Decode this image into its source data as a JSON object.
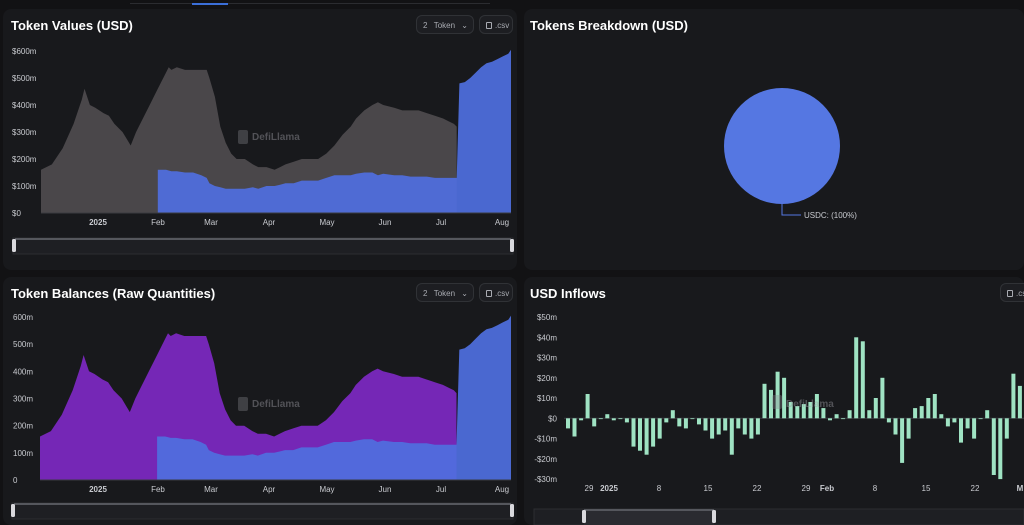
{
  "panels": {
    "token_values": {
      "title": "Token Values (USD)",
      "token_count": "2",
      "token_label": "Token",
      "csv_label": ".csv"
    },
    "tokens_breakdown": {
      "title": "Tokens Breakdown (USD)"
    },
    "token_balances": {
      "title": "Token Balances (Raw Quantities)",
      "token_count": "2",
      "token_label": "Token",
      "csv_label": ".csv"
    },
    "usd_inflows": {
      "title": "USD Inflows",
      "csv_label": ".csv"
    }
  },
  "watermark": "DefiLlama",
  "colors": {
    "gray_area": "#4d4a4d",
    "blue_area": "#4f6fe0",
    "purple_area": "#7a28bf",
    "inflow_bar": "#9fe3c3",
    "pie": "#5577e2"
  },
  "chart_data": [
    {
      "type": "area",
      "title": "Token Values (USD)",
      "x_labels": [
        "2025",
        "Feb",
        "Mar",
        "Apr",
        "May",
        "Jun",
        "Jul",
        "Aug"
      ],
      "y_labels": [
        "$0",
        "$100m",
        "$200m",
        "$300m",
        "$400m",
        "$500m",
        "$600m"
      ],
      "ylim": [
        0,
        600
      ],
      "series": [
        {
          "color": "#4d4a4d",
          "points": [
            [
              0,
              160
            ],
            [
              4,
              180
            ],
            [
              8,
              240
            ],
            [
              12,
              330
            ],
            [
              15,
              420
            ],
            [
              16,
              460
            ],
            [
              18,
              400
            ],
            [
              20,
              390
            ],
            [
              23,
              370
            ],
            [
              25,
              360
            ],
            [
              27,
              330
            ],
            [
              30,
              300
            ],
            [
              33,
              250
            ],
            [
              35,
              300
            ],
            [
              37,
              340
            ],
            [
              40,
              400
            ],
            [
              43,
              460
            ],
            [
              46,
              520
            ],
            [
              47,
              540
            ],
            [
              48,
              530
            ],
            [
              50,
              540
            ],
            [
              53,
              530
            ],
            [
              56,
              530
            ],
            [
              59,
              530
            ],
            [
              61,
              530
            ],
            [
              62,
              500
            ],
            [
              64,
              430
            ],
            [
              66,
              320
            ],
            [
              68,
              260
            ],
            [
              70,
              220
            ],
            [
              72,
              200
            ],
            [
              75,
              200
            ],
            [
              78,
              180
            ],
            [
              80,
              170
            ],
            [
              83,
              170
            ],
            [
              86,
              160
            ],
            [
              88,
              170
            ],
            [
              90,
              180
            ],
            [
              93,
              190
            ],
            [
              96,
              200
            ],
            [
              99,
              200
            ],
            [
              102,
              200
            ],
            [
              105,
              220
            ],
            [
              108,
              250
            ],
            [
              111,
              290
            ],
            [
              114,
              320
            ],
            [
              116,
              350
            ],
            [
              119,
              380
            ],
            [
              122,
              400
            ],
            [
              124,
              410
            ],
            [
              126,
              400
            ],
            [
              130,
              390
            ],
            [
              133,
              380
            ],
            [
              136,
              380
            ],
            [
              139,
              380
            ],
            [
              142,
              370
            ],
            [
              145,
              360
            ],
            [
              148,
              350
            ],
            [
              150,
              340
            ],
            [
              152,
              330
            ],
            [
              153,
              320
            ]
          ]
        },
        {
          "color": "#4f6fe0",
          "points": [
            [
              43,
              160
            ],
            [
              46,
              160
            ],
            [
              48,
              155
            ],
            [
              50,
              155
            ],
            [
              53,
              150
            ],
            [
              56,
              150
            ],
            [
              59,
              140
            ],
            [
              61,
              130
            ],
            [
              62,
              110
            ],
            [
              64,
              100
            ],
            [
              66,
              95
            ],
            [
              68,
              90
            ],
            [
              70,
              90
            ],
            [
              72,
              90
            ],
            [
              75,
              90
            ],
            [
              78,
              95
            ],
            [
              80,
              90
            ],
            [
              83,
              100
            ],
            [
              86,
              100
            ],
            [
              88,
              105
            ],
            [
              90,
              110
            ],
            [
              93,
              110
            ],
            [
              96,
              120
            ],
            [
              99,
              120
            ],
            [
              102,
              120
            ],
            [
              105,
              130
            ],
            [
              108,
              140
            ],
            [
              111,
              140
            ],
            [
              114,
              140
            ],
            [
              116,
              145
            ],
            [
              119,
              150
            ],
            [
              122,
              150
            ],
            [
              124,
              140
            ],
            [
              126,
              145
            ],
            [
              130,
              140
            ],
            [
              133,
              140
            ],
            [
              136,
              135
            ],
            [
              139,
              135
            ],
            [
              142,
              135
            ],
            [
              145,
              130
            ],
            [
              148,
              130
            ],
            [
              150,
              130
            ],
            [
              152,
              130
            ],
            [
              153,
              130
            ],
            [
              154,
              480
            ],
            [
              156,
              485
            ],
            [
              158,
              500
            ],
            [
              160,
              520
            ],
            [
              162,
              540
            ],
            [
              164,
              555
            ],
            [
              166,
              560
            ],
            [
              168,
              570
            ],
            [
              170,
              580
            ],
            [
              172,
              590
            ],
            [
              173,
              605
            ]
          ]
        }
      ]
    },
    {
      "type": "pie",
      "title": "Tokens Breakdown (USD)",
      "slices": [
        {
          "label": "USDC: (100%)",
          "value": 100,
          "color": "#5577e2"
        }
      ]
    },
    {
      "type": "area",
      "title": "Token Balances (Raw Quantities)",
      "x_labels": [
        "2025",
        "Feb",
        "Mar",
        "Apr",
        "May",
        "Jun",
        "Jul",
        "Aug"
      ],
      "y_labels": [
        "0",
        "100m",
        "200m",
        "300m",
        "400m",
        "500m",
        "600m"
      ],
      "ylim": [
        0,
        600
      ],
      "series": [
        {
          "color": "#7a28bf",
          "points": [
            [
              0,
              160
            ],
            [
              4,
              180
            ],
            [
              8,
              240
            ],
            [
              12,
              330
            ],
            [
              15,
              420
            ],
            [
              16,
              460
            ],
            [
              18,
              400
            ],
            [
              20,
              390
            ],
            [
              23,
              370
            ],
            [
              25,
              360
            ],
            [
              27,
              330
            ],
            [
              30,
              300
            ],
            [
              33,
              250
            ],
            [
              35,
              300
            ],
            [
              37,
              340
            ],
            [
              40,
              400
            ],
            [
              43,
              460
            ],
            [
              46,
              520
            ],
            [
              47,
              540
            ],
            [
              48,
              530
            ],
            [
              50,
              540
            ],
            [
              53,
              530
            ],
            [
              56,
              530
            ],
            [
              59,
              530
            ],
            [
              61,
              530
            ],
            [
              62,
              500
            ],
            [
              64,
              430
            ],
            [
              66,
              320
            ],
            [
              68,
              260
            ],
            [
              70,
              220
            ],
            [
              72,
              200
            ],
            [
              75,
              200
            ],
            [
              78,
              180
            ],
            [
              80,
              170
            ],
            [
              83,
              170
            ],
            [
              86,
              160
            ],
            [
              88,
              170
            ],
            [
              90,
              180
            ],
            [
              93,
              190
            ],
            [
              96,
              200
            ],
            [
              99,
              200
            ],
            [
              102,
              200
            ],
            [
              105,
              220
            ],
            [
              108,
              250
            ],
            [
              111,
              290
            ],
            [
              114,
              320
            ],
            [
              116,
              350
            ],
            [
              119,
              380
            ],
            [
              122,
              400
            ],
            [
              124,
              410
            ],
            [
              126,
              400
            ],
            [
              130,
              390
            ],
            [
              133,
              380
            ],
            [
              136,
              380
            ],
            [
              139,
              380
            ],
            [
              142,
              370
            ],
            [
              145,
              360
            ],
            [
              148,
              350
            ],
            [
              150,
              340
            ],
            [
              152,
              330
            ],
            [
              153,
              320
            ]
          ]
        },
        {
          "color": "#4f6fe0",
          "points": [
            [
              43,
              160
            ],
            [
              46,
              160
            ],
            [
              48,
              155
            ],
            [
              50,
              155
            ],
            [
              53,
              150
            ],
            [
              56,
              150
            ],
            [
              59,
              140
            ],
            [
              61,
              130
            ],
            [
              62,
              110
            ],
            [
              64,
              100
            ],
            [
              66,
              95
            ],
            [
              68,
              90
            ],
            [
              70,
              90
            ],
            [
              72,
              90
            ],
            [
              75,
              90
            ],
            [
              78,
              95
            ],
            [
              80,
              90
            ],
            [
              83,
              100
            ],
            [
              86,
              100
            ],
            [
              88,
              105
            ],
            [
              90,
              110
            ],
            [
              93,
              110
            ],
            [
              96,
              120
            ],
            [
              99,
              120
            ],
            [
              102,
              120
            ],
            [
              105,
              130
            ],
            [
              108,
              140
            ],
            [
              111,
              140
            ],
            [
              114,
              140
            ],
            [
              116,
              145
            ],
            [
              119,
              150
            ],
            [
              122,
              150
            ],
            [
              124,
              140
            ],
            [
              126,
              145
            ],
            [
              130,
              140
            ],
            [
              133,
              140
            ],
            [
              136,
              135
            ],
            [
              139,
              135
            ],
            [
              142,
              135
            ],
            [
              145,
              130
            ],
            [
              148,
              130
            ],
            [
              150,
              130
            ],
            [
              152,
              130
            ],
            [
              153,
              130
            ],
            [
              154,
              480
            ],
            [
              156,
              485
            ],
            [
              158,
              500
            ],
            [
              160,
              520
            ],
            [
              162,
              540
            ],
            [
              164,
              555
            ],
            [
              166,
              560
            ],
            [
              168,
              570
            ],
            [
              170,
              580
            ],
            [
              172,
              590
            ],
            [
              173,
              605
            ]
          ]
        }
      ]
    },
    {
      "type": "bar",
      "title": "USD Inflows",
      "x_labels": [
        "29",
        "2025",
        "8",
        "15",
        "22",
        "29",
        "Feb",
        "8",
        "15",
        "22",
        "M"
      ],
      "y_labels": [
        "-$30m",
        "-$20m",
        "-$10m",
        "$0",
        "$10m",
        "$20m",
        "$30m",
        "$40m",
        "$50m"
      ],
      "ylim": [
        -30,
        50
      ],
      "values": [
        -5,
        -9,
        -1,
        12,
        -4,
        0,
        2,
        -1,
        0,
        -2,
        -14,
        -16,
        -18,
        -14,
        -10,
        -2,
        4,
        -4,
        -5,
        0,
        -3,
        -6,
        -10,
        -8,
        -6,
        -18,
        -5,
        -8,
        -10,
        -8,
        17,
        14,
        23,
        20,
        8,
        6,
        7,
        8,
        12,
        5,
        -1,
        2,
        0,
        4,
        40,
        38,
        4,
        10,
        20,
        -2,
        -8,
        -22,
        -10,
        5,
        6,
        10,
        12,
        2,
        -4,
        -2,
        -12,
        -5,
        -10,
        0,
        4,
        -28,
        -30,
        -10,
        22,
        16,
        8
      ]
    }
  ]
}
